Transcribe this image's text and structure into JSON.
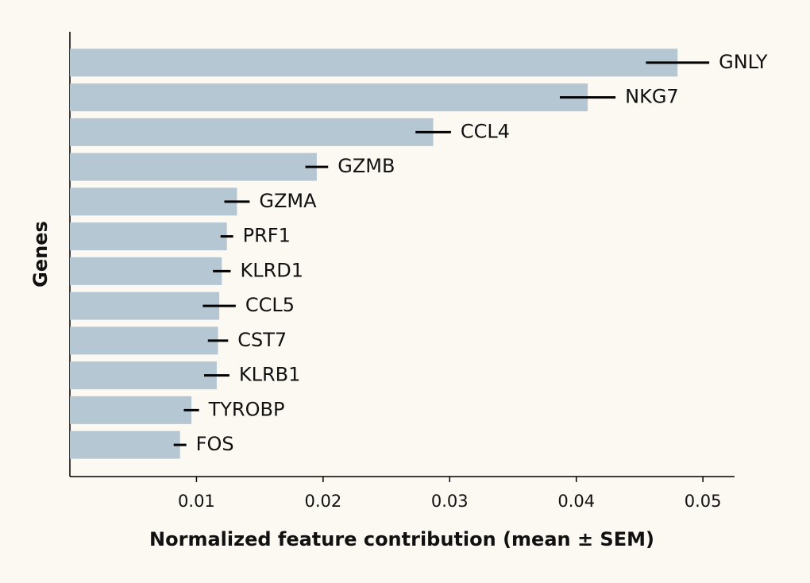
{
  "chart_data": {
    "type": "barh_error",
    "x_label": "Normalized feature contribution (mean ± SEM)",
    "y_label": "Genes",
    "categories": [
      "GNLY",
      "NKG7",
      "CCL4",
      "GZMB",
      "GZMA",
      "PRF1",
      "KLRD1",
      "CCL5",
      "CST7",
      "KLRB1",
      "TYROBP",
      "FOS"
    ],
    "values": [
      0.048,
      0.0409,
      0.0287,
      0.0195,
      0.0132,
      0.0124,
      0.012,
      0.0118,
      0.0117,
      0.0116,
      0.0096,
      0.0087
    ],
    "errors": [
      0.0025,
      0.0022,
      0.0014,
      0.0009,
      0.001,
      0.0005,
      0.0007,
      0.0013,
      0.0008,
      0.001,
      0.0006,
      0.0005
    ],
    "color": "#b5c7d3",
    "error_color": "#000000",
    "xlim": [
      0,
      0.0525
    ],
    "xticks": [
      0.01,
      0.02,
      0.03,
      0.04,
      0.05
    ]
  }
}
